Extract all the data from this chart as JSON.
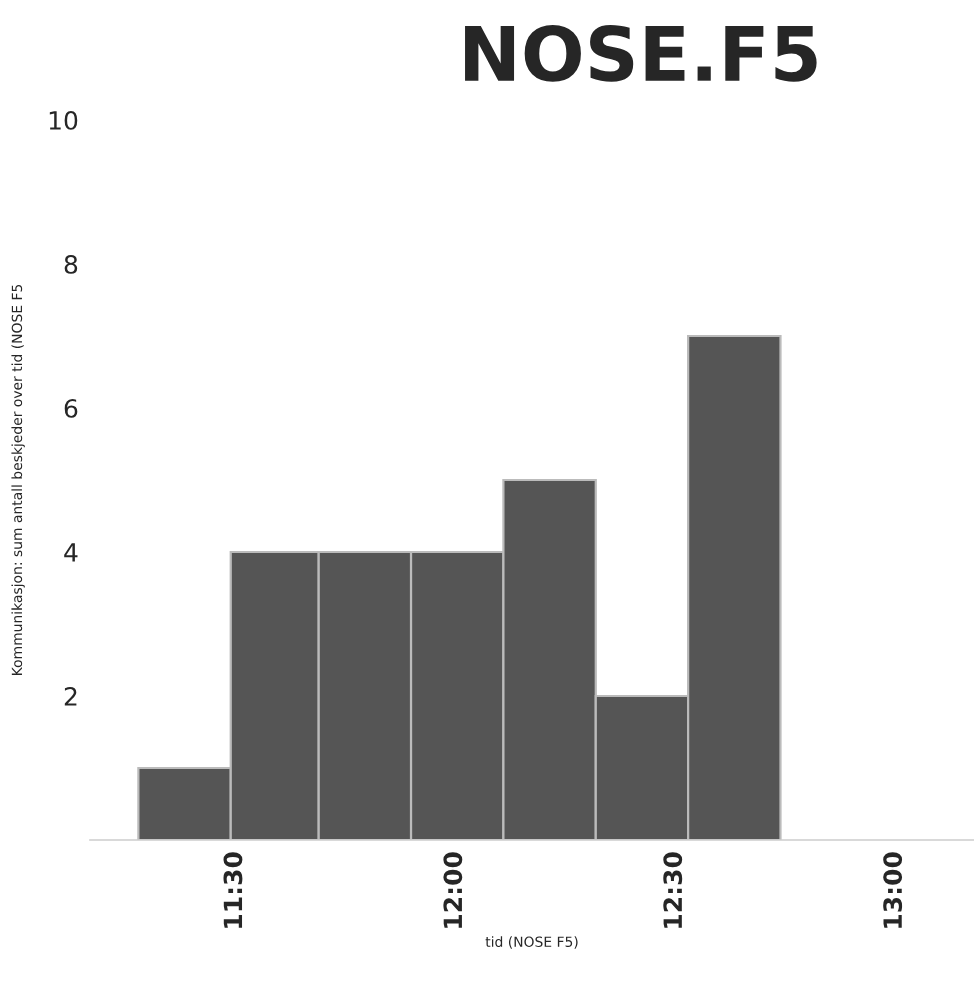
{
  "chart_data": {
    "type": "histogram",
    "title": "NOSE.F5",
    "xlabel": "tid (NOSE F5)",
    "ylabel": "Kommunikasjon: sum antall beskjeder over tid (NOSE F5",
    "bins": [
      11.28,
      11.49,
      11.69,
      11.9,
      12.11,
      12.32,
      12.53,
      12.74
    ],
    "values": [
      1,
      4,
      4,
      4,
      5,
      2,
      7
    ],
    "color": "#555555",
    "xlim": [
      11.17,
      13.18
    ],
    "ylim": [
      0,
      10
    ],
    "xticks": [
      {
        "value": 11.5,
        "label": "11:30"
      },
      {
        "value": 12.0,
        "label": "12:00"
      },
      {
        "value": 12.5,
        "label": "12:30"
      },
      {
        "value": 13.0,
        "label": "13:00"
      }
    ],
    "yticks": [
      2,
      4,
      6,
      8,
      10
    ],
    "grid": false
  }
}
